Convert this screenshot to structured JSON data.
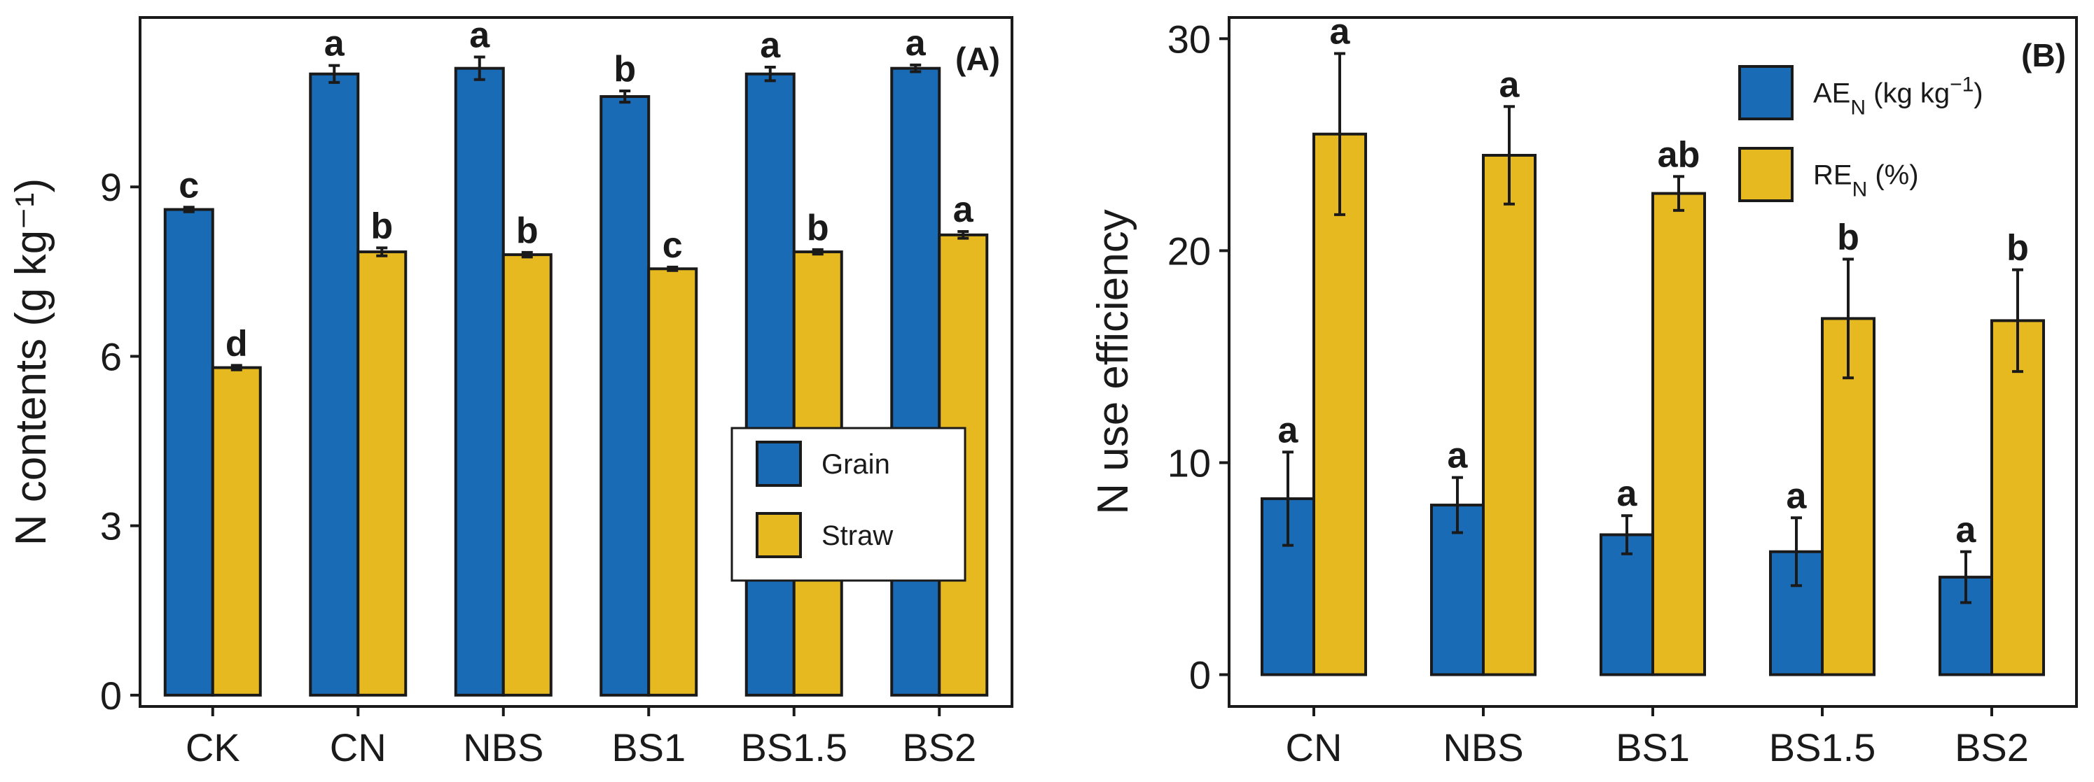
{
  "chart_data": [
    {
      "panel": "(A)",
      "type": "bar",
      "title": "",
      "xlabel": "",
      "ylabel": "N contents (g kg⁻¹)",
      "ylim": [
        -0.2,
        12.0
      ],
      "yticks": [
        0,
        3,
        6,
        9
      ],
      "grid": false,
      "legend_position": "bottom-right",
      "categories": [
        "CK",
        "CN",
        "NBS",
        "BS1",
        "BS1.5",
        "BS2"
      ],
      "series": [
        {
          "name": "Grain",
          "color": "#1a6bb5",
          "values": [
            8.6,
            11.0,
            11.1,
            10.6,
            11.0,
            11.1
          ],
          "errors": [
            0.04,
            0.15,
            0.2,
            0.1,
            0.12,
            0.06
          ],
          "labels": [
            "c",
            "a",
            "a",
            "b",
            "a",
            "a"
          ]
        },
        {
          "name": "Straw",
          "color": "#e6b920",
          "values": [
            5.8,
            7.85,
            7.8,
            7.55,
            7.85,
            8.15
          ],
          "errors": [
            0.04,
            0.07,
            0.04,
            0.03,
            0.04,
            0.06
          ],
          "labels": [
            "d",
            "b",
            "b",
            "c",
            "b",
            "a"
          ]
        }
      ]
    },
    {
      "panel": "(B)",
      "type": "bar",
      "title": "",
      "xlabel": "",
      "ylabel": "N use efficiency",
      "ylim": [
        -1.5,
        31.0
      ],
      "yticks": [
        0,
        10,
        20,
        30
      ],
      "grid": false,
      "legend_position": "top-right",
      "categories": [
        "CN",
        "NBS",
        "BS1",
        "BS1.5",
        "BS2"
      ],
      "series": [
        {
          "name": "AE",
          "sub": "N",
          "unit": " (kg kg",
          "unit_sup": "−1",
          "unit_end": ")",
          "color": "#1a6bb5",
          "values": [
            8.3,
            8.0,
            6.6,
            5.8,
            4.6
          ],
          "errors": [
            2.2,
            1.3,
            0.9,
            1.6,
            1.2
          ],
          "labels": [
            "a",
            "a",
            "a",
            "a",
            "a"
          ]
        },
        {
          "name": "RE",
          "sub": "N",
          "unit": " (%)",
          "unit_sup": "",
          "unit_end": "",
          "color": "#e6b920",
          "values": [
            25.5,
            24.5,
            22.7,
            16.8,
            16.7
          ],
          "errors": [
            3.8,
            2.3,
            0.8,
            2.8,
            2.4
          ],
          "labels": [
            "a",
            "a",
            "ab",
            "b",
            "b"
          ]
        }
      ]
    }
  ]
}
